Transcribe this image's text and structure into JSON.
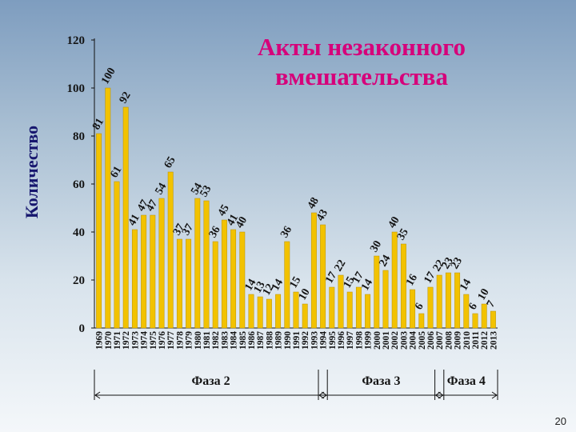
{
  "slide": {
    "title": "Акты незаконного\nвмешательства",
    "page_number": "20"
  },
  "colors": {
    "bar": "#f2c200",
    "bar_edge": "#b89000",
    "text": "#141414",
    "title": "#d6007a",
    "axis_label": "#16166e"
  },
  "chart_data": {
    "type": "bar",
    "title": "Акты незаконного вмешательства",
    "xlabel": "",
    "ylabel": "Количество",
    "ylim": [
      0,
      120
    ],
    "yticks": [
      0,
      20,
      40,
      60,
      80,
      100,
      120
    ],
    "grid": false,
    "categories": [
      "1969",
      "1970",
      "1971",
      "1972",
      "1973",
      "1974",
      "1975",
      "1976",
      "1977",
      "1978",
      "1979",
      "1980",
      "1981",
      "1982",
      "1983",
      "1984",
      "1985",
      "1986",
      "1987",
      "1988",
      "1989",
      "1990",
      "1991",
      "1992",
      "1993",
      "1994",
      "1995",
      "1996",
      "1997",
      "1998",
      "1999",
      "2000",
      "2001",
      "2002",
      "2003",
      "2004",
      "2005",
      "2006",
      "2007",
      "2008",
      "2009",
      "2010",
      "2011",
      "2012",
      "2013"
    ],
    "values": [
      81,
      100,
      61,
      92,
      41,
      47,
      47,
      54,
      65,
      37,
      37,
      54,
      53,
      36,
      45,
      41,
      40,
      14,
      13,
      12,
      14,
      36,
      15,
      10,
      48,
      43,
      17,
      22,
      15,
      17,
      14,
      30,
      24,
      40,
      35,
      16,
      6,
      17,
      22,
      23,
      23,
      14,
      6,
      10,
      7
    ],
    "phases": [
      {
        "label": "Фаза 2",
        "from": "1969",
        "to": "1994"
      },
      {
        "label": "Фаза 3",
        "from": "1994",
        "to": "2007"
      },
      {
        "label": "Фаза 4",
        "from": "2007",
        "to": "2013"
      }
    ]
  }
}
